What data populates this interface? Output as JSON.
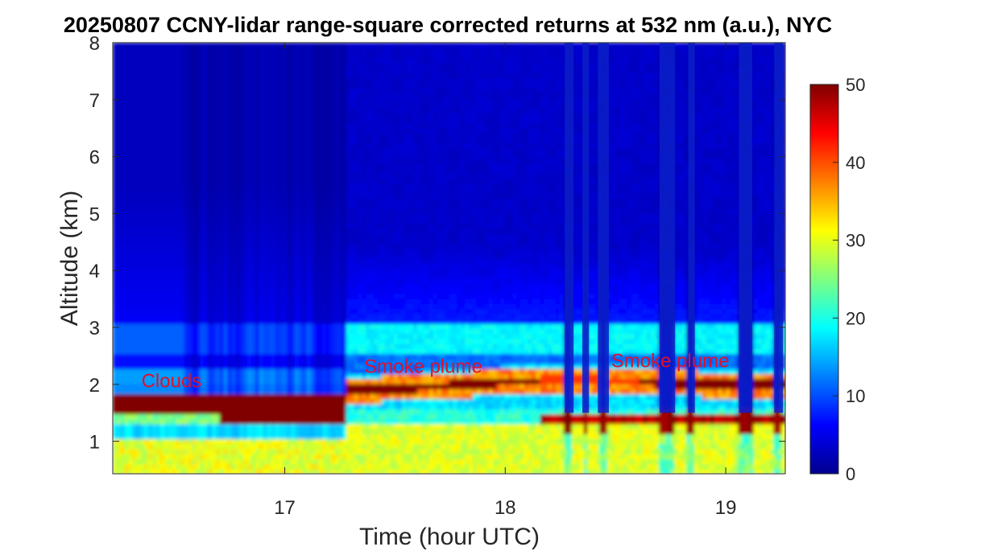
{
  "chart_data": {
    "type": "heatmap",
    "title": "20250807 CCNY-lidar range-square corrected returns at 532 nm (a.u.), NYC",
    "xlabel": "Time (hour UTC)",
    "ylabel": "Altitude (km)",
    "xlim": [
      16.22,
      19.27
    ],
    "ylim": [
      0.43,
      8
    ],
    "xticks": [
      "17",
      "18",
      "19"
    ],
    "yticks": [
      "1",
      "2",
      "3",
      "4",
      "5",
      "6",
      "7",
      "8"
    ],
    "colorbar": {
      "range": [
        0,
        50
      ],
      "ticks": [
        "0",
        "10",
        "20",
        "30",
        "40",
        "50"
      ],
      "colormap": "jet"
    },
    "annotations": [
      {
        "text": "Clouds",
        "x": 16.35,
        "y": 1.95,
        "color": "#e0102a"
      },
      {
        "text": "Smoke plume",
        "x": 17.36,
        "y": 2.2,
        "color": "#e0102a"
      },
      {
        "text": "Smoke plume",
        "x": 18.48,
        "y": 2.3,
        "color": "#e0102a"
      }
    ],
    "features": {
      "cloud_layer": {
        "x_start": 16.22,
        "x_end": 17.27,
        "base_km": 1.45,
        "top_km": 1.85,
        "value": 50
      },
      "smoke_plume_core": [
        {
          "x": 17.27,
          "y": 1.9
        },
        {
          "x": 17.6,
          "y": 1.95
        },
        {
          "x": 18.0,
          "y": 2.05
        },
        {
          "x": 18.3,
          "y": 2.1
        },
        {
          "x": 18.6,
          "y": 2.05
        },
        {
          "x": 19.0,
          "y": 2.0
        },
        {
          "x": 19.27,
          "y": 2.0
        }
      ],
      "aerosol_layer_top_km": 3.0,
      "boundary_layer_top_km": 1.3,
      "low_signal_gap_hours": [
        [
          18.27,
          18.31
        ],
        [
          18.35,
          18.38
        ],
        [
          18.42,
          18.47
        ],
        [
          18.7,
          18.77
        ],
        [
          18.83,
          18.86
        ],
        [
          19.06,
          19.12
        ],
        [
          19.22,
          19.26
        ]
      ]
    }
  }
}
